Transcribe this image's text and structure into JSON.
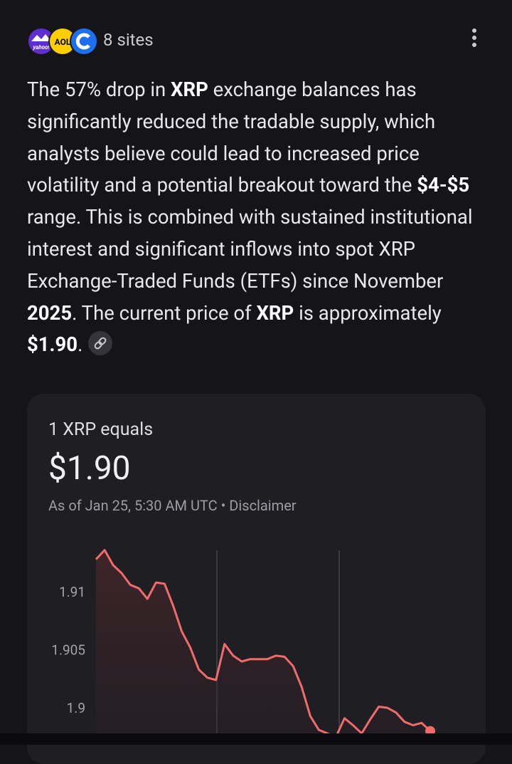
{
  "sources": {
    "logos": [
      "yahoo!",
      "AOL"
    ],
    "label": "8 sites"
  },
  "answer": {
    "runs": [
      {
        "text": "The 57% drop in ",
        "bold": false
      },
      {
        "text": "XRP",
        "bold": true
      },
      {
        "text": " exchange balances has significantly reduced the tradable supply, which analysts believe could lead to increased price volatility and a potential breakout toward the ",
        "bold": false
      },
      {
        "text": "$4-$5",
        "bold": true
      },
      {
        "text": " range. This is combined with sustained institutional interest and significant inflows into spot XRP Exchange-Traded Funds (ETFs) since November ",
        "bold": false
      },
      {
        "text": "2025",
        "bold": true
      },
      {
        "text": ". The current price of ",
        "bold": false
      },
      {
        "text": "XRP",
        "bold": true
      },
      {
        "text": " is approximately ",
        "bold": false
      },
      {
        "text": "$1.90",
        "bold": true
      },
      {
        "text": ".",
        "bold": false
      }
    ]
  },
  "card": {
    "heading": "1 XRP equals",
    "price": "$1.90",
    "as_of": "As of Jan 25, 5:30 AM UTC",
    "separator": "•",
    "disclaimer": "Disclaimer"
  },
  "chart_data": {
    "type": "line",
    "color": "#f06b6b",
    "categories": [
      null,
      null,
      null,
      null,
      null,
      null,
      null,
      null,
      null,
      null,
      null,
      null,
      null,
      null,
      null,
      null,
      null,
      null,
      null,
      null,
      null,
      null,
      null,
      null,
      null,
      null,
      null,
      null,
      null,
      null,
      null,
      null,
      null,
      null,
      null,
      null,
      null,
      null,
      null,
      null
    ],
    "values": [
      1.9128,
      1.9136,
      1.9123,
      1.9116,
      1.9106,
      1.9103,
      1.9094,
      1.9108,
      1.9107,
      1.9088,
      1.9066,
      1.9052,
      1.9033,
      1.9026,
      1.9024,
      1.9055,
      1.9045,
      1.904,
      1.9042,
      1.9042,
      1.9042,
      1.9045,
      1.9044,
      1.9036,
      1.9018,
      1.8993,
      1.8981,
      1.8978,
      1.8975,
      1.8991,
      1.8985,
      1.8978,
      1.899,
      1.9001,
      1.9,
      1.8996,
      1.8988,
      1.8985,
      1.8987,
      1.898
    ],
    "ylim": [
      1.8978,
      1.914
    ],
    "yticks": [
      1.9,
      1.905,
      1.91
    ]
  }
}
